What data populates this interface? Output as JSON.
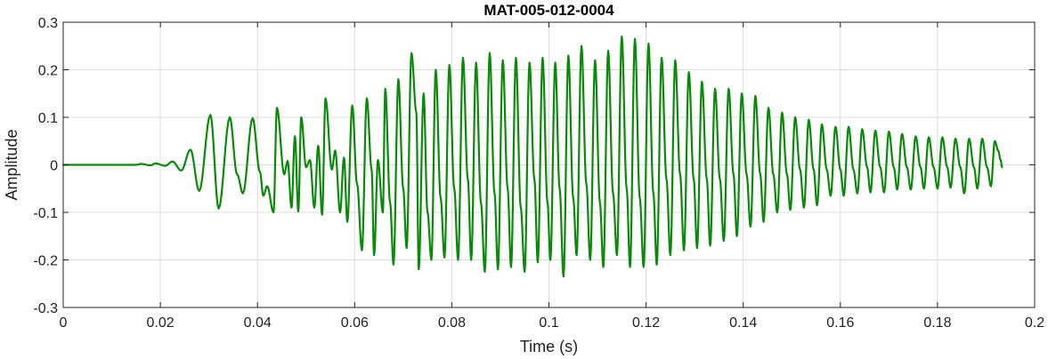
{
  "chart_data": {
    "type": "line",
    "title": "MAT-005-012-0004",
    "xlabel": "Time (s)",
    "ylabel": "Amplitude",
    "xlim": [
      0,
      0.2
    ],
    "ylim": [
      -0.3,
      0.3
    ],
    "xticks": [
      "0",
      "0.02",
      "0.04",
      "0.06",
      "0.08",
      "0.1",
      "0.12",
      "0.14",
      "0.16",
      "0.18",
      "0.2"
    ],
    "yticks": [
      "0.3",
      "0.2",
      "0.1",
      "0",
      "-0.1",
      "-0.2",
      "-0.3"
    ],
    "grid": true,
    "series": [
      {
        "color": "#0a8a0a",
        "peaks": [
          [
            0.0,
            0.0
          ],
          [
            0.015,
            0.0
          ],
          [
            0.016,
            0.002
          ],
          [
            0.018,
            -0.001
          ],
          [
            0.019,
            0.003
          ],
          [
            0.021,
            -0.002
          ],
          [
            0.0225,
            0.007
          ],
          [
            0.0243,
            -0.012
          ],
          [
            0.0262,
            0.032
          ],
          [
            0.028,
            -0.055
          ],
          [
            0.0303,
            0.105
          ],
          [
            0.032,
            -0.092
          ],
          [
            0.0343,
            0.1
          ],
          [
            0.0358,
            -0.02
          ],
          [
            0.037,
            -0.06
          ],
          [
            0.039,
            0.098
          ],
          [
            0.0405,
            -0.015
          ],
          [
            0.0412,
            -0.065
          ],
          [
            0.042,
            -0.045
          ],
          [
            0.0433,
            -0.1
          ],
          [
            0.044,
            0.12
          ],
          [
            0.0455,
            -0.02
          ],
          [
            0.0462,
            0.008
          ],
          [
            0.047,
            -0.09
          ],
          [
            0.0477,
            0.06
          ],
          [
            0.0484,
            -0.098
          ],
          [
            0.049,
            0.1
          ],
          [
            0.05,
            -0.005
          ],
          [
            0.0508,
            0.01
          ],
          [
            0.0517,
            -0.09
          ],
          [
            0.0525,
            0.04
          ],
          [
            0.0533,
            -0.105
          ],
          [
            0.054,
            0.14
          ],
          [
            0.0553,
            -0.01
          ],
          [
            0.056,
            0.03
          ],
          [
            0.057,
            -0.1
          ],
          [
            0.0578,
            0.015
          ],
          [
            0.0585,
            -0.12
          ],
          [
            0.0595,
            0.125
          ],
          [
            0.0605,
            -0.04
          ],
          [
            0.0615,
            -0.18
          ],
          [
            0.0625,
            0.14
          ],
          [
            0.0635,
            -0.01
          ],
          [
            0.064,
            -0.19
          ],
          [
            0.0648,
            0.01
          ],
          [
            0.0658,
            -0.1
          ],
          [
            0.0663,
            0.16
          ],
          [
            0.0673,
            -0.08
          ],
          [
            0.068,
            -0.21
          ],
          [
            0.069,
            0.18
          ],
          [
            0.07,
            -0.05
          ],
          [
            0.0707,
            -0.175
          ],
          [
            0.0717,
            0.235
          ],
          [
            0.0727,
            0.11
          ],
          [
            0.0732,
            -0.22
          ],
          [
            0.0742,
            0.15
          ],
          [
            0.075,
            -0.1
          ],
          [
            0.0758,
            -0.2
          ],
          [
            0.0767,
            0.2
          ],
          [
            0.0777,
            -0.07
          ],
          [
            0.0785,
            -0.195
          ],
          [
            0.0795,
            0.21
          ],
          [
            0.0805,
            -0.05
          ],
          [
            0.0813,
            -0.2
          ],
          [
            0.0823,
            0.225
          ],
          [
            0.0833,
            -0.03
          ],
          [
            0.084,
            -0.2
          ],
          [
            0.085,
            0.215
          ],
          [
            0.086,
            -0.08
          ],
          [
            0.0868,
            -0.225
          ],
          [
            0.0878,
            0.235
          ],
          [
            0.0888,
            -0.06
          ],
          [
            0.0895,
            -0.22
          ],
          [
            0.0905,
            0.22
          ],
          [
            0.0915,
            -0.05
          ],
          [
            0.0922,
            -0.215
          ],
          [
            0.0932,
            0.225
          ],
          [
            0.0942,
            -0.09
          ],
          [
            0.095,
            -0.225
          ],
          [
            0.096,
            0.215
          ],
          [
            0.097,
            -0.03
          ],
          [
            0.0977,
            -0.205
          ],
          [
            0.0987,
            0.225
          ],
          [
            0.0997,
            -0.08
          ],
          [
            0.1003,
            -0.2
          ],
          [
            0.1013,
            0.215
          ],
          [
            0.1022,
            -0.05
          ],
          [
            0.103,
            -0.235
          ],
          [
            0.104,
            0.23
          ],
          [
            0.105,
            -0.07
          ],
          [
            0.1057,
            -0.19
          ],
          [
            0.1067,
            0.25
          ],
          [
            0.1077,
            -0.04
          ],
          [
            0.1085,
            -0.2
          ],
          [
            0.1095,
            0.22
          ],
          [
            0.1105,
            -0.08
          ],
          [
            0.1112,
            -0.215
          ],
          [
            0.1122,
            0.24
          ],
          [
            0.1132,
            -0.06
          ],
          [
            0.114,
            -0.19
          ],
          [
            0.115,
            0.27
          ],
          [
            0.116,
            -0.05
          ],
          [
            0.1167,
            -0.215
          ],
          [
            0.1177,
            0.265
          ],
          [
            0.1187,
            -0.07
          ],
          [
            0.1195,
            -0.215
          ],
          [
            0.1205,
            0.255
          ],
          [
            0.1215,
            -0.06
          ],
          [
            0.1222,
            -0.21
          ],
          [
            0.1232,
            0.225
          ],
          [
            0.1242,
            -0.03
          ],
          [
            0.125,
            -0.19
          ],
          [
            0.126,
            0.22
          ],
          [
            0.127,
            -0.02
          ],
          [
            0.1278,
            -0.18
          ],
          [
            0.1288,
            0.195
          ],
          [
            0.1298,
            -0.03
          ],
          [
            0.1305,
            -0.175
          ],
          [
            0.1315,
            0.175
          ],
          [
            0.1325,
            -0.03
          ],
          [
            0.1332,
            -0.17
          ],
          [
            0.1342,
            0.16
          ],
          [
            0.1352,
            -0.03
          ],
          [
            0.136,
            -0.16
          ],
          [
            0.137,
            0.16
          ],
          [
            0.138,
            -0.02
          ],
          [
            0.1387,
            -0.15
          ],
          [
            0.1397,
            0.15
          ],
          [
            0.1407,
            -0.02
          ],
          [
            0.1415,
            -0.13
          ],
          [
            0.1425,
            0.145
          ],
          [
            0.1435,
            -0.02
          ],
          [
            0.1442,
            -0.12
          ],
          [
            0.1452,
            0.12
          ],
          [
            0.1462,
            -0.02
          ],
          [
            0.147,
            -0.1
          ],
          [
            0.148,
            0.11
          ],
          [
            0.149,
            -0.02
          ],
          [
            0.1497,
            -0.095
          ],
          [
            0.1507,
            0.1
          ],
          [
            0.1517,
            -0.01
          ],
          [
            0.1525,
            -0.09
          ],
          [
            0.1535,
            0.095
          ],
          [
            0.1545,
            -0.01
          ],
          [
            0.1552,
            -0.085
          ],
          [
            0.1562,
            0.085
          ],
          [
            0.1572,
            -0.01
          ],
          [
            0.158,
            -0.065
          ],
          [
            0.159,
            0.08
          ],
          [
            0.16,
            -0.01
          ],
          [
            0.1607,
            -0.065
          ],
          [
            0.1617,
            0.08
          ],
          [
            0.1627,
            -0.01
          ],
          [
            0.1635,
            -0.06
          ],
          [
            0.1645,
            0.075
          ],
          [
            0.1655,
            -0.005
          ],
          [
            0.1662,
            -0.058
          ],
          [
            0.1672,
            0.072
          ],
          [
            0.1682,
            -0.005
          ],
          [
            0.169,
            -0.058
          ],
          [
            0.17,
            0.07
          ],
          [
            0.171,
            -0.005
          ],
          [
            0.1717,
            -0.052
          ],
          [
            0.1727,
            0.065
          ],
          [
            0.1737,
            -0.005
          ],
          [
            0.1745,
            -0.052
          ],
          [
            0.1755,
            0.06
          ],
          [
            0.1765,
            -0.005
          ],
          [
            0.1772,
            -0.05
          ],
          [
            0.1782,
            0.058
          ],
          [
            0.1792,
            -0.005
          ],
          [
            0.18,
            -0.05
          ],
          [
            0.181,
            0.058
          ],
          [
            0.182,
            -0.005
          ],
          [
            0.1827,
            -0.048
          ],
          [
            0.1837,
            0.055
          ],
          [
            0.1847,
            -0.005
          ],
          [
            0.1855,
            -0.06
          ],
          [
            0.1865,
            0.055
          ],
          [
            0.1875,
            -0.005
          ],
          [
            0.1882,
            -0.05
          ],
          [
            0.1892,
            0.055
          ],
          [
            0.1902,
            -0.005
          ],
          [
            0.191,
            -0.045
          ],
          [
            0.1918,
            0.05
          ],
          [
            0.1925,
            0.03
          ],
          [
            0.193,
            0.01
          ],
          [
            0.1933,
            -0.005
          ]
        ]
      }
    ]
  }
}
